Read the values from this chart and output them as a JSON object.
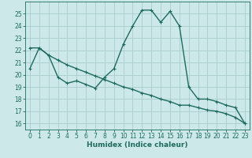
{
  "xlabel": "Humidex (Indice chaleur)",
  "background_color": "#cce8e8",
  "line_color": "#1e6b5e",
  "grid_color": "#aacccc",
  "xlim": [
    -0.5,
    23.5
  ],
  "ylim": [
    15.5,
    26.0
  ],
  "yticks": [
    16,
    17,
    18,
    19,
    20,
    21,
    22,
    23,
    24,
    25
  ],
  "xticks": [
    0,
    1,
    2,
    3,
    4,
    5,
    6,
    7,
    8,
    9,
    10,
    11,
    12,
    13,
    14,
    15,
    16,
    17,
    18,
    19,
    20,
    21,
    22,
    23
  ],
  "line1_x": [
    0,
    1,
    2,
    3,
    4,
    5,
    6,
    7,
    8,
    9,
    10,
    11,
    12,
    13,
    14,
    15,
    16,
    17,
    18,
    19,
    20,
    21,
    22,
    23
  ],
  "line1_y": [
    20.5,
    22.2,
    21.6,
    19.8,
    19.3,
    19.5,
    19.2,
    18.9,
    19.8,
    20.5,
    22.5,
    24.0,
    25.3,
    25.3,
    24.3,
    25.2,
    24.0,
    19.0,
    18.0,
    18.0,
    17.8,
    17.5,
    17.3,
    16.0
  ],
  "line2_x": [
    0,
    1,
    2,
    3,
    4,
    5,
    6,
    7,
    8,
    9,
    10,
    11,
    12,
    13,
    14,
    15,
    16,
    17,
    18,
    19,
    20,
    21,
    22,
    23
  ],
  "line2_y": [
    22.2,
    22.2,
    21.6,
    21.2,
    20.8,
    20.5,
    20.2,
    19.9,
    19.6,
    19.3,
    19.0,
    18.8,
    18.5,
    18.3,
    18.0,
    17.8,
    17.5,
    17.5,
    17.3,
    17.1,
    17.0,
    16.8,
    16.5,
    16.0
  ],
  "markersize": 2.5,
  "linewidth": 1.0,
  "tick_fontsize": 5.5,
  "xlabel_fontsize": 6.5
}
